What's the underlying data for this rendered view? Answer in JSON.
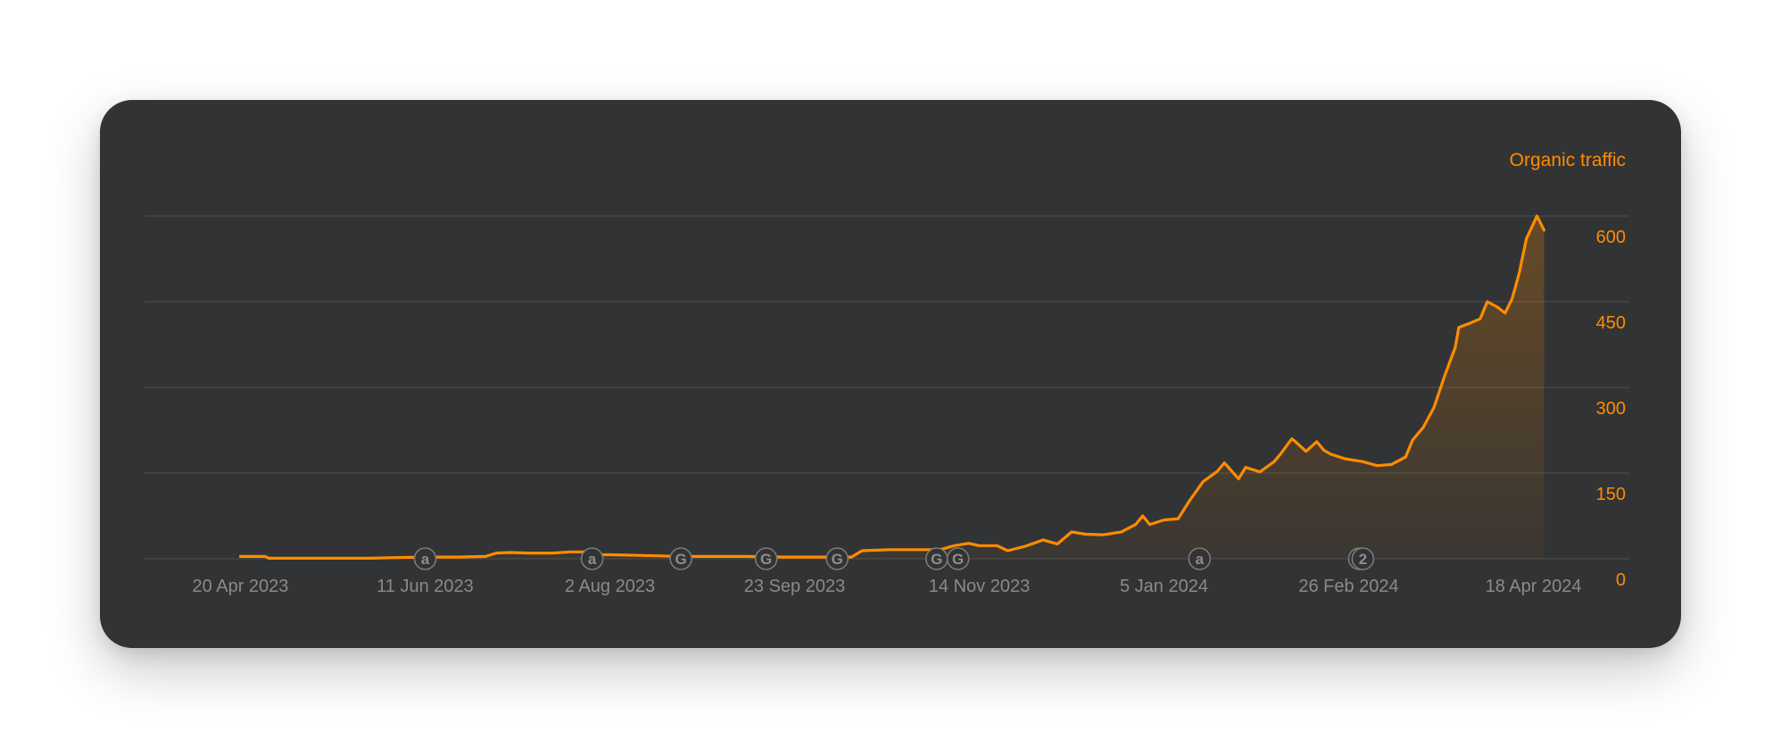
{
  "chart_data": {
    "type": "area",
    "series": [
      {
        "name": "Organic traffic",
        "color": "#ff8c00",
        "points": [
          [
            "2023-04-20",
            4
          ],
          [
            "2023-04-27",
            4
          ],
          [
            "2023-04-28",
            1
          ],
          [
            "2023-05-10",
            1
          ],
          [
            "2023-05-27",
            1
          ],
          [
            "2023-06-02",
            2
          ],
          [
            "2023-06-11",
            3
          ],
          [
            "2023-06-20",
            3
          ],
          [
            "2023-06-28",
            4
          ],
          [
            "2023-07-01",
            10
          ],
          [
            "2023-07-05",
            11
          ],
          [
            "2023-07-10",
            10
          ],
          [
            "2023-07-17",
            10
          ],
          [
            "2023-07-22",
            12
          ],
          [
            "2023-07-27",
            12
          ],
          [
            "2023-07-28",
            7
          ],
          [
            "2023-08-02",
            7
          ],
          [
            "2023-08-10",
            6
          ],
          [
            "2023-08-17",
            5
          ],
          [
            "2023-08-20",
            4
          ],
          [
            "2023-08-31",
            4
          ],
          [
            "2023-09-09",
            4
          ],
          [
            "2023-09-20",
            3
          ],
          [
            "2023-09-23",
            3
          ],
          [
            "2023-10-05",
            3
          ],
          [
            "2023-10-09",
            3
          ],
          [
            "2023-10-12",
            14
          ],
          [
            "2023-10-16",
            15
          ],
          [
            "2023-10-20",
            16
          ],
          [
            "2023-10-30",
            16
          ],
          [
            "2023-11-03",
            16
          ],
          [
            "2023-11-07",
            23
          ],
          [
            "2023-11-11",
            27
          ],
          [
            "2023-11-14",
            23
          ],
          [
            "2023-11-19",
            23
          ],
          [
            "2023-11-22",
            14
          ],
          [
            "2023-11-27",
            22
          ],
          [
            "2023-12-02",
            33
          ],
          [
            "2023-12-06",
            26
          ],
          [
            "2023-12-10",
            47
          ],
          [
            "2023-12-14",
            43
          ],
          [
            "2023-12-19",
            42
          ],
          [
            "2023-12-24",
            47
          ],
          [
            "2023-12-28",
            60
          ],
          [
            "2023-12-30",
            75
          ],
          [
            "2024-01-01",
            60
          ],
          [
            "2024-01-05",
            68
          ],
          [
            "2024-01-09",
            70
          ],
          [
            "2024-01-12",
            100
          ],
          [
            "2024-01-16",
            135
          ],
          [
            "2024-01-20",
            153
          ],
          [
            "2024-01-22",
            168
          ],
          [
            "2024-01-26",
            140
          ],
          [
            "2024-01-28",
            160
          ],
          [
            "2024-02-01",
            152
          ],
          [
            "2024-02-05",
            170
          ],
          [
            "2024-02-07",
            185
          ],
          [
            "2024-02-10",
            210
          ],
          [
            "2024-02-11",
            205
          ],
          [
            "2024-02-14",
            188
          ],
          [
            "2024-02-17",
            205
          ],
          [
            "2024-02-19",
            190
          ],
          [
            "2024-02-21",
            183
          ],
          [
            "2024-02-25",
            175
          ],
          [
            "2024-03-01",
            170
          ],
          [
            "2024-03-05",
            163
          ],
          [
            "2024-03-09",
            165
          ],
          [
            "2024-03-13",
            178
          ],
          [
            "2024-03-15",
            208
          ],
          [
            "2024-03-18",
            230
          ],
          [
            "2024-03-21",
            265
          ],
          [
            "2024-03-24",
            320
          ],
          [
            "2024-03-27",
            370
          ],
          [
            "2024-03-28",
            405
          ],
          [
            "2024-03-31",
            412
          ],
          [
            "2024-04-03",
            420
          ],
          [
            "2024-04-05",
            450
          ],
          [
            "2024-04-08",
            440
          ],
          [
            "2024-04-10",
            430
          ],
          [
            "2024-04-12",
            455
          ],
          [
            "2024-04-14",
            500
          ],
          [
            "2024-04-16",
            560
          ],
          [
            "2024-04-19",
            600
          ],
          [
            "2024-04-21",
            575
          ]
        ]
      }
    ],
    "x_ticks": [
      "20 Apr 2023",
      "11 Jun 2023",
      "2 Aug 2023",
      "23 Sep 2023",
      "14 Nov 2023",
      "5 Jan 2024",
      "26 Feb 2024",
      "18 Apr 2024"
    ],
    "y_ticks": [
      "0",
      "150",
      "300",
      "450",
      "600"
    ],
    "xlim": [
      "2023-03-24",
      "2024-05-15"
    ],
    "ylim": [
      0,
      600
    ],
    "grid": true,
    "annotations": [
      {
        "icon": "ahrefs-update-icon",
        "label": "a",
        "date": "2023-06-11"
      },
      {
        "icon": "ahrefs-update-icon",
        "label": "a",
        "date": "2023-07-28"
      },
      {
        "icon": "google-update-icon",
        "label": "G",
        "date": "2023-08-22"
      },
      {
        "icon": "google-update-icon",
        "label": "G",
        "date": "2023-09-15"
      },
      {
        "icon": "google-update-icon",
        "label": "G",
        "date": "2023-10-05"
      },
      {
        "icon": "google-update-icon",
        "label": "G",
        "date": "2023-11-02"
      },
      {
        "icon": "google-update-icon",
        "label": "G",
        "date": "2023-11-08"
      },
      {
        "icon": "ahrefs-update-icon",
        "label": "a",
        "date": "2024-01-15"
      },
      {
        "icon": "grouped-updates-icon",
        "label": "2",
        "date": "2024-03-01"
      }
    ],
    "colors": {
      "line": "#ff8c00",
      "axis_label": "#ff8c00",
      "tick_label": "#8a8a8c",
      "grid": "#4a4a4c",
      "background": "#323334"
    }
  }
}
